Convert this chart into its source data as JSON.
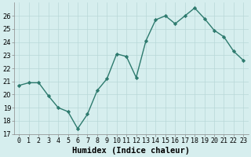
{
  "x": [
    0,
    1,
    2,
    3,
    4,
    5,
    6,
    7,
    8,
    9,
    10,
    11,
    12,
    13,
    14,
    15,
    16,
    17,
    18,
    19,
    20,
    21,
    22,
    23
  ],
  "y": [
    20.7,
    20.9,
    20.9,
    19.9,
    19.0,
    18.7,
    17.4,
    18.5,
    20.3,
    21.2,
    23.1,
    22.9,
    21.3,
    24.1,
    25.7,
    26.0,
    25.4,
    26.0,
    26.6,
    25.8,
    24.9,
    24.4,
    23.3,
    22.6
  ],
  "line_color": "#2d7a6e",
  "marker": "D",
  "marker_size": 2.2,
  "bg_color": "#d6eeee",
  "grid_color": "#b8d8d8",
  "xlabel": "Humidex (Indice chaleur)",
  "ylim": [
    17,
    27
  ],
  "yticks": [
    17,
    18,
    19,
    20,
    21,
    22,
    23,
    24,
    25,
    26
  ],
  "xlim": [
    -0.5,
    23.5
  ],
  "xlabel_fontsize": 7.5,
  "tick_fontsize": 6.0,
  "linewidth": 1.0
}
